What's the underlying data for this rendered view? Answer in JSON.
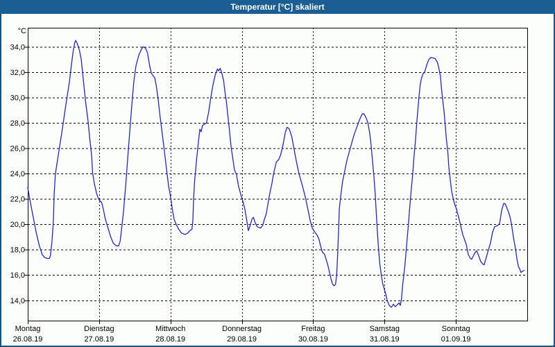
{
  "window": {
    "title": "Temperatur [°C] skaliert"
  },
  "colors": {
    "title_bar": "#1b5e93",
    "title_text": "#ffffff",
    "frame": "#17537c",
    "background": "#fbfefb",
    "plot_border": "#000000",
    "grid": "#000000",
    "text": "#000000",
    "line": "#2323cd"
  },
  "chart_data": {
    "type": "line",
    "title": "Temperatur [°C] skaliert",
    "ylabel": "°C",
    "xlabel": "",
    "ylim": [
      12.4,
      35.5
    ],
    "y_ticks": [
      34,
      32,
      30,
      28,
      26,
      24,
      22,
      20,
      18,
      16,
      14
    ],
    "y_tick_labels": [
      "34,0",
      "32,0",
      "30,0",
      "28,0",
      "26,0",
      "24,0",
      "22,0",
      "20,0",
      "18,0",
      "16,0",
      "14,0"
    ],
    "x_range_hours": [
      0,
      168
    ],
    "x_days": [
      {
        "name": "Montag",
        "date": "26.08.19"
      },
      {
        "name": "Dienstag",
        "date": "27.08.19"
      },
      {
        "name": "Mittwoch",
        "date": "28.08.19"
      },
      {
        "name": "Donnerstag",
        "date": "29.08.19"
      },
      {
        "name": "Freitag",
        "date": "30.08.19"
      },
      {
        "name": "Samstag",
        "date": "31.08.19"
      },
      {
        "name": "Sonntag",
        "date": "01.09.19"
      }
    ],
    "grid": "dashed",
    "legend": "none",
    "daily_summary": [
      {
        "day": "Montag 26.08.19",
        "min": 17.3,
        "max": 34.5
      },
      {
        "day": "Dienstag 27.08.19",
        "min": 18.3,
        "max": 34.0
      },
      {
        "day": "Mittwoch 28.08.19",
        "min": 19.2,
        "max": 32.3
      },
      {
        "day": "Donnerstag 29.08.19",
        "min": 19.5,
        "max": 27.7
      },
      {
        "day": "Freitag 30.08.19",
        "min": 15.15,
        "max": 28.7
      },
      {
        "day": "Samstag 31.08.19",
        "min": 13.45,
        "max": 33.15
      },
      {
        "day": "Sonntag 01.09.19",
        "min": 16.2,
        "max": 21.65
      }
    ],
    "series": [
      {
        "name": "Temperatur [°C]",
        "color": "#2323cd",
        "points": [
          [
            0,
            22.9
          ],
          [
            0.9,
            21.7
          ],
          [
            1.9,
            20.5
          ],
          [
            2.9,
            19.3
          ],
          [
            3.9,
            18.3
          ],
          [
            4.9,
            17.6
          ],
          [
            5.6,
            17.4
          ],
          [
            6.5,
            17.3
          ],
          [
            7.2,
            17.3
          ],
          [
            7.6,
            17.5
          ],
          [
            8.1,
            18.5
          ],
          [
            8.6,
            20.2
          ],
          [
            8.9,
            22.4
          ],
          [
            9.3,
            24.0
          ],
          [
            10.5,
            25.8
          ],
          [
            11.7,
            27.6
          ],
          [
            12.8,
            29.4
          ],
          [
            14.0,
            31.2
          ],
          [
            14.7,
            32.6
          ],
          [
            15.3,
            33.7
          ],
          [
            15.8,
            34.3
          ],
          [
            16.1,
            34.5
          ],
          [
            16.6,
            34.3
          ],
          [
            17.4,
            33.7
          ],
          [
            18.0,
            33.0
          ],
          [
            18.7,
            31.4
          ],
          [
            19.4,
            29.8
          ],
          [
            20.3,
            28.1
          ],
          [
            20.8,
            26.9
          ],
          [
            21.5,
            25.4
          ],
          [
            21.8,
            24.1
          ],
          [
            22.4,
            23.2
          ],
          [
            23.2,
            22.4
          ],
          [
            23.8,
            22.0
          ],
          [
            24.1,
            21.9
          ],
          [
            24.9,
            21.7
          ],
          [
            25.5,
            21.1
          ],
          [
            26.1,
            20.4
          ],
          [
            27.0,
            19.7
          ],
          [
            27.9,
            19.0
          ],
          [
            28.8,
            18.5
          ],
          [
            29.8,
            18.3
          ],
          [
            30.6,
            18.3
          ],
          [
            31.1,
            18.7
          ],
          [
            31.4,
            19.3
          ],
          [
            32.2,
            21.0
          ],
          [
            33.0,
            23.2
          ],
          [
            33.8,
            25.8
          ],
          [
            34.6,
            28.2
          ],
          [
            35.2,
            30.0
          ],
          [
            35.7,
            31.3
          ],
          [
            36.4,
            32.5
          ],
          [
            37.3,
            33.3
          ],
          [
            38.2,
            33.8
          ],
          [
            38.8,
            34.0
          ],
          [
            39.6,
            33.9
          ],
          [
            40.3,
            33.5
          ],
          [
            41.0,
            32.5
          ],
          [
            41.6,
            31.9
          ],
          [
            42.2,
            31.7
          ],
          [
            42.8,
            31.5
          ],
          [
            43.3,
            30.8
          ],
          [
            43.8,
            30.0
          ],
          [
            44.4,
            28.7
          ],
          [
            45.1,
            27.4
          ],
          [
            45.9,
            25.9
          ],
          [
            46.7,
            24.3
          ],
          [
            47.4,
            23.0
          ],
          [
            48.1,
            22.1
          ],
          [
            48.6,
            21.2
          ],
          [
            49.2,
            20.4
          ],
          [
            49.9,
            20.0
          ],
          [
            50.8,
            19.6
          ],
          [
            51.7,
            19.3
          ],
          [
            52.9,
            19.2
          ],
          [
            53.8,
            19.3
          ],
          [
            54.5,
            19.5
          ],
          [
            55.2,
            19.6
          ],
          [
            55.5,
            20.2
          ],
          [
            55.8,
            22.0
          ],
          [
            56.1,
            23.3
          ],
          [
            56.7,
            24.9
          ],
          [
            57.3,
            26.3
          ],
          [
            57.9,
            27.5
          ],
          [
            58.3,
            27.3
          ],
          [
            58.8,
            27.8
          ],
          [
            59.5,
            27.9
          ],
          [
            60.1,
            28.0
          ],
          [
            60.8,
            28.8
          ],
          [
            61.5,
            29.9
          ],
          [
            62.3,
            31.0
          ],
          [
            63.1,
            31.8
          ],
          [
            63.8,
            32.25
          ],
          [
            64.2,
            32.1
          ],
          [
            64.7,
            32.3
          ],
          [
            65.3,
            31.9
          ],
          [
            65.9,
            31.3
          ],
          [
            66.3,
            30.5
          ],
          [
            66.8,
            29.7
          ],
          [
            67.3,
            28.6
          ],
          [
            67.8,
            27.5
          ],
          [
            68.4,
            26.1
          ],
          [
            68.9,
            25.3
          ],
          [
            69.5,
            24.3
          ],
          [
            70.2,
            23.9
          ],
          [
            70.9,
            23.0
          ],
          [
            71.7,
            22.3
          ],
          [
            72.5,
            21.7
          ],
          [
            73.0,
            21.2
          ],
          [
            73.6,
            20.4
          ],
          [
            74.2,
            19.5
          ],
          [
            74.8,
            19.9
          ],
          [
            75.4,
            20.4
          ],
          [
            75.9,
            20.55
          ],
          [
            76.5,
            20.1
          ],
          [
            77.2,
            19.8
          ],
          [
            78.3,
            19.7
          ],
          [
            79.0,
            19.9
          ],
          [
            79.6,
            20.4
          ],
          [
            80.2,
            20.8
          ],
          [
            80.7,
            21.5
          ],
          [
            81.3,
            22.3
          ],
          [
            82.1,
            23.2
          ],
          [
            82.7,
            24.0
          ],
          [
            83.6,
            24.9
          ],
          [
            84.4,
            25.1
          ],
          [
            85.1,
            25.5
          ],
          [
            85.9,
            26.3
          ],
          [
            86.6,
            27.2
          ],
          [
            87.2,
            27.65
          ],
          [
            87.9,
            27.55
          ],
          [
            88.8,
            26.9
          ],
          [
            89.5,
            26.0
          ],
          [
            90.4,
            24.9
          ],
          [
            91.2,
            24.0
          ],
          [
            92.3,
            23.1
          ],
          [
            93.4,
            22.1
          ],
          [
            94.3,
            21.1
          ],
          [
            95.0,
            20.3
          ],
          [
            95.7,
            19.7
          ],
          [
            96.5,
            19.4
          ],
          [
            97.3,
            19.15
          ],
          [
            97.9,
            18.85
          ],
          [
            98.5,
            18.3
          ],
          [
            99.1,
            17.8
          ],
          [
            99.8,
            17.65
          ],
          [
            100.4,
            17.2
          ],
          [
            101.0,
            16.7
          ],
          [
            101.5,
            16.2
          ],
          [
            102.0,
            15.7
          ],
          [
            102.5,
            15.3
          ],
          [
            103.0,
            15.15
          ],
          [
            103.5,
            15.25
          ],
          [
            103.9,
            16.0
          ],
          [
            104.2,
            17.5
          ],
          [
            104.5,
            19.3
          ],
          [
            104.8,
            21.2
          ],
          [
            105.3,
            22.3
          ],
          [
            105.9,
            23.4
          ],
          [
            106.6,
            24.2
          ],
          [
            107.4,
            25.1
          ],
          [
            108.5,
            26.0
          ],
          [
            109.3,
            26.7
          ],
          [
            110.1,
            27.3
          ],
          [
            110.9,
            27.8
          ],
          [
            111.7,
            28.3
          ],
          [
            112.5,
            28.7
          ],
          [
            113.1,
            28.7
          ],
          [
            113.8,
            28.4
          ],
          [
            114.4,
            28.0
          ],
          [
            115.0,
            27.2
          ],
          [
            115.5,
            26.2
          ],
          [
            116.0,
            24.9
          ],
          [
            116.4,
            23.8
          ],
          [
            116.8,
            22.6
          ],
          [
            117.2,
            21.0
          ],
          [
            117.6,
            19.4
          ],
          [
            118.0,
            18.0
          ],
          [
            118.4,
            16.9
          ],
          [
            118.9,
            16.0
          ],
          [
            119.4,
            15.3
          ],
          [
            119.9,
            14.9
          ],
          [
            120.4,
            14.5
          ],
          [
            120.9,
            14.0
          ],
          [
            121.6,
            13.6
          ],
          [
            122.3,
            13.45
          ],
          [
            123.0,
            13.7
          ],
          [
            123.6,
            13.5
          ],
          [
            124.3,
            13.65
          ],
          [
            124.9,
            13.8
          ],
          [
            125.3,
            13.6
          ],
          [
            125.7,
            14.1
          ],
          [
            126.1,
            15.2
          ],
          [
            126.5,
            16.0
          ],
          [
            126.9,
            16.9
          ],
          [
            127.3,
            18.0
          ],
          [
            127.7,
            19.1
          ],
          [
            128.1,
            20.2
          ],
          [
            128.5,
            21.4
          ],
          [
            129.0,
            22.8
          ],
          [
            129.5,
            24.0
          ],
          [
            129.9,
            25.3
          ],
          [
            130.4,
            26.6
          ],
          [
            130.8,
            27.9
          ],
          [
            131.2,
            29.0
          ],
          [
            131.6,
            30.1
          ],
          [
            132.0,
            31.0
          ],
          [
            132.4,
            31.5
          ],
          [
            132.9,
            31.85
          ],
          [
            133.5,
            32.0
          ],
          [
            134.0,
            32.4
          ],
          [
            134.3,
            32.65
          ],
          [
            134.9,
            33.0
          ],
          [
            135.6,
            33.15
          ],
          [
            136.6,
            33.1
          ],
          [
            137.1,
            33.05
          ],
          [
            137.8,
            32.75
          ],
          [
            138.3,
            32.3
          ],
          [
            138.8,
            31.65
          ],
          [
            139.1,
            30.85
          ],
          [
            139.5,
            29.9
          ],
          [
            140.0,
            28.95
          ],
          [
            140.4,
            27.85
          ],
          [
            140.8,
            26.75
          ],
          [
            141.3,
            25.65
          ],
          [
            141.6,
            24.55
          ],
          [
            142.1,
            23.5
          ],
          [
            142.6,
            22.6
          ],
          [
            143.2,
            21.9
          ],
          [
            143.7,
            21.5
          ],
          [
            144.2,
            21.2
          ],
          [
            145.2,
            20.3
          ],
          [
            146.3,
            19.2
          ],
          [
            147.5,
            18.4
          ],
          [
            148.2,
            17.6
          ],
          [
            148.9,
            17.3
          ],
          [
            149.3,
            17.25
          ],
          [
            150.5,
            17.8
          ],
          [
            151.0,
            17.9
          ],
          [
            151.7,
            17.5
          ],
          [
            152.4,
            17.05
          ],
          [
            153.1,
            16.85
          ],
          [
            153.5,
            16.8
          ],
          [
            154.7,
            17.8
          ],
          [
            155.6,
            18.5
          ],
          [
            156.3,
            19.35
          ],
          [
            157.0,
            19.8
          ],
          [
            158.0,
            19.9
          ],
          [
            158.7,
            20.05
          ],
          [
            159.4,
            21.1
          ],
          [
            160.1,
            21.65
          ],
          [
            160.6,
            21.6
          ],
          [
            161.5,
            21.1
          ],
          [
            162.2,
            20.6
          ],
          [
            162.7,
            20.0
          ],
          [
            163.4,
            18.9
          ],
          [
            164.1,
            18.0
          ],
          [
            164.5,
            17.3
          ],
          [
            165.0,
            16.7
          ],
          [
            165.5,
            16.45
          ],
          [
            165.9,
            16.2
          ],
          [
            166.4,
            16.3
          ],
          [
            166.9,
            16.35
          ]
        ]
      }
    ]
  }
}
